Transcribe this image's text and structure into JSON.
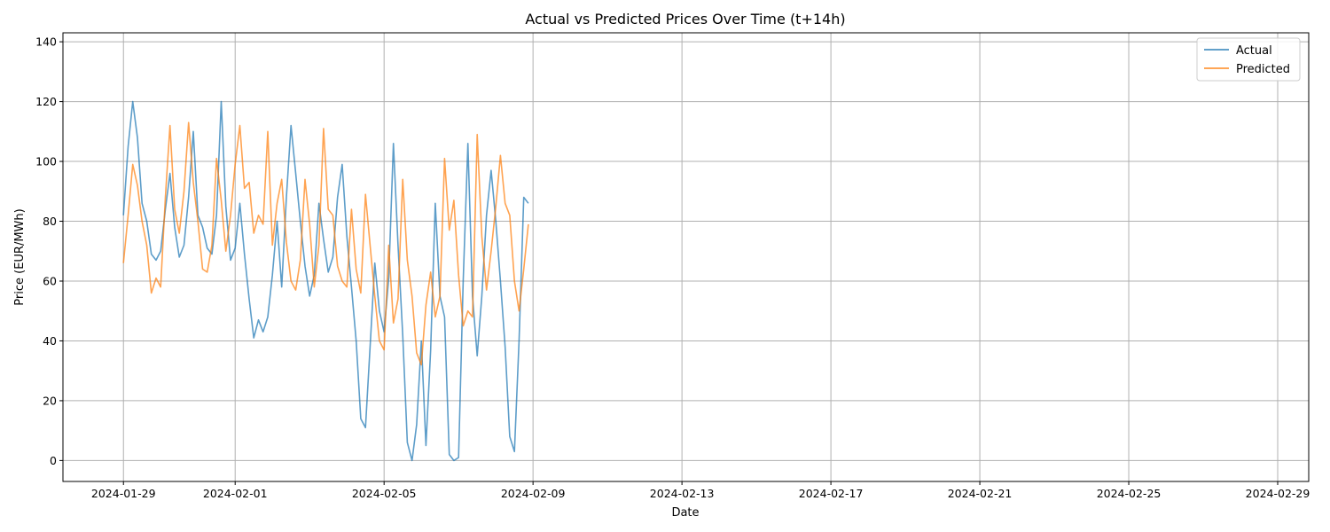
{
  "chart_data": {
    "type": "line",
    "title": "Actual vs Predicted Prices Over Time (t+14h)",
    "xlabel": "Date",
    "ylabel": "Price (EUR/MWh)",
    "xlim": [
      "2024-01-27T09:00",
      "2024-02-29T20:00"
    ],
    "ylim": [
      -7,
      143
    ],
    "grid": true,
    "legend_position": "top-right",
    "y_ticks": [
      0,
      20,
      40,
      60,
      80,
      100,
      120,
      140
    ],
    "x_ticks": [
      "2024-01-29",
      "2024-02-01",
      "2024-02-05",
      "2024-02-09",
      "2024-02-13",
      "2024-02-17",
      "2024-02-21",
      "2024-02-25",
      "2024-02-29"
    ],
    "series": [
      {
        "name": "Actual",
        "color": "#1f77b4",
        "points": [
          [
            "2024-01-29T00:00",
            82
          ],
          [
            "2024-01-29T03:00",
            105
          ],
          [
            "2024-01-29T06:00",
            120
          ],
          [
            "2024-01-29T09:00",
            108
          ],
          [
            "2024-01-29T12:00",
            86
          ],
          [
            "2024-01-29T15:00",
            80
          ],
          [
            "2024-01-29T18:00",
            69
          ],
          [
            "2024-01-29T21:00",
            67
          ],
          [
            "2024-01-30T00:00",
            70
          ],
          [
            "2024-01-30T03:00",
            84
          ],
          [
            "2024-01-30T06:00",
            96
          ],
          [
            "2024-01-30T09:00",
            78
          ],
          [
            "2024-01-30T12:00",
            68
          ],
          [
            "2024-01-30T15:00",
            72
          ],
          [
            "2024-01-30T18:00",
            88
          ],
          [
            "2024-01-30T21:00",
            110
          ],
          [
            "2024-01-31T00:00",
            82
          ],
          [
            "2024-01-31T03:00",
            78
          ],
          [
            "2024-01-31T06:00",
            71
          ],
          [
            "2024-01-31T09:00",
            69
          ],
          [
            "2024-01-31T12:00",
            82
          ],
          [
            "2024-01-31T15:00",
            120
          ],
          [
            "2024-01-31T18:00",
            85
          ],
          [
            "2024-01-31T21:00",
            67
          ],
          [
            "2024-02-01T00:00",
            71
          ],
          [
            "2024-02-01T03:00",
            86
          ],
          [
            "2024-02-01T06:00",
            69
          ],
          [
            "2024-02-01T09:00",
            54
          ],
          [
            "2024-02-01T12:00",
            41
          ],
          [
            "2024-02-01T15:00",
            47
          ],
          [
            "2024-02-01T18:00",
            43
          ],
          [
            "2024-02-01T21:00",
            48
          ],
          [
            "2024-02-02T00:00",
            62
          ],
          [
            "2024-02-02T03:00",
            80
          ],
          [
            "2024-02-02T06:00",
            58
          ],
          [
            "2024-02-02T09:00",
            88
          ],
          [
            "2024-02-02T12:00",
            112
          ],
          [
            "2024-02-02T15:00",
            96
          ],
          [
            "2024-02-02T18:00",
            80
          ],
          [
            "2024-02-02T21:00",
            65
          ],
          [
            "2024-02-03T00:00",
            55
          ],
          [
            "2024-02-03T03:00",
            62
          ],
          [
            "2024-02-03T06:00",
            86
          ],
          [
            "2024-02-03T09:00",
            74
          ],
          [
            "2024-02-03T12:00",
            63
          ],
          [
            "2024-02-03T15:00",
            68
          ],
          [
            "2024-02-03T18:00",
            88
          ],
          [
            "2024-02-03T21:00",
            99
          ],
          [
            "2024-02-04T00:00",
            75
          ],
          [
            "2024-02-04T03:00",
            58
          ],
          [
            "2024-02-04T06:00",
            40
          ],
          [
            "2024-02-04T09:00",
            14
          ],
          [
            "2024-02-04T12:00",
            11
          ],
          [
            "2024-02-04T15:00",
            38
          ],
          [
            "2024-02-04T18:00",
            66
          ],
          [
            "2024-02-04T21:00",
            50
          ],
          [
            "2024-02-05T00:00",
            43
          ],
          [
            "2024-02-05T03:00",
            61
          ],
          [
            "2024-02-05T06:00",
            106
          ],
          [
            "2024-02-05T09:00",
            72
          ],
          [
            "2024-02-05T12:00",
            42
          ],
          [
            "2024-02-05T15:00",
            6
          ],
          [
            "2024-02-05T18:00",
            0
          ],
          [
            "2024-02-05T21:00",
            12
          ],
          [
            "2024-02-06T00:00",
            40
          ],
          [
            "2024-02-06T03:00",
            5
          ],
          [
            "2024-02-06T06:00",
            37
          ],
          [
            "2024-02-06T09:00",
            86
          ],
          [
            "2024-02-06T12:00",
            55
          ],
          [
            "2024-02-06T15:00",
            48
          ],
          [
            "2024-02-06T18:00",
            2
          ],
          [
            "2024-02-06T21:00",
            0
          ],
          [
            "2024-02-07T00:00",
            1
          ],
          [
            "2024-02-07T03:00",
            60
          ],
          [
            "2024-02-07T06:00",
            106
          ],
          [
            "2024-02-07T09:00",
            55
          ],
          [
            "2024-02-07T12:00",
            35
          ],
          [
            "2024-02-07T15:00",
            55
          ],
          [
            "2024-02-07T18:00",
            82
          ],
          [
            "2024-02-07T21:00",
            97
          ],
          [
            "2024-02-08T00:00",
            80
          ],
          [
            "2024-02-08T03:00",
            60
          ],
          [
            "2024-02-08T06:00",
            38
          ],
          [
            "2024-02-08T09:00",
            8
          ],
          [
            "2024-02-08T12:00",
            3
          ],
          [
            "2024-02-08T15:00",
            40
          ],
          [
            "2024-02-08T18:00",
            88
          ],
          [
            "2024-02-08T21:00",
            86
          ]
        ]
      },
      {
        "name": "Predicted",
        "color": "#ff7f0e",
        "points": [
          [
            "2024-01-29T00:00",
            66
          ],
          [
            "2024-01-29T03:00",
            82
          ],
          [
            "2024-01-29T06:00",
            99
          ],
          [
            "2024-01-29T09:00",
            92
          ],
          [
            "2024-01-29T12:00",
            80
          ],
          [
            "2024-01-29T15:00",
            72
          ],
          [
            "2024-01-29T18:00",
            56
          ],
          [
            "2024-01-29T21:00",
            61
          ],
          [
            "2024-01-30T00:00",
            58
          ],
          [
            "2024-01-30T03:00",
            88
          ],
          [
            "2024-01-30T06:00",
            112
          ],
          [
            "2024-01-30T09:00",
            84
          ],
          [
            "2024-01-30T12:00",
            76
          ],
          [
            "2024-01-30T15:00",
            90
          ],
          [
            "2024-01-30T18:00",
            113
          ],
          [
            "2024-01-30T21:00",
            93
          ],
          [
            "2024-01-31T00:00",
            80
          ],
          [
            "2024-01-31T03:00",
            64
          ],
          [
            "2024-01-31T06:00",
            63
          ],
          [
            "2024-01-31T09:00",
            72
          ],
          [
            "2024-01-31T12:00",
            101
          ],
          [
            "2024-01-31T15:00",
            87
          ],
          [
            "2024-01-31T18:00",
            70
          ],
          [
            "2024-01-31T21:00",
            82
          ],
          [
            "2024-02-01T00:00",
            99
          ],
          [
            "2024-02-01T03:00",
            112
          ],
          [
            "2024-02-01T06:00",
            91
          ],
          [
            "2024-02-01T09:00",
            93
          ],
          [
            "2024-02-01T12:00",
            76
          ],
          [
            "2024-02-01T15:00",
            82
          ],
          [
            "2024-02-01T18:00",
            79
          ],
          [
            "2024-02-01T21:00",
            110
          ],
          [
            "2024-02-02T00:00",
            72
          ],
          [
            "2024-02-02T03:00",
            86
          ],
          [
            "2024-02-02T06:00",
            94
          ],
          [
            "2024-02-02T09:00",
            73
          ],
          [
            "2024-02-02T12:00",
            60
          ],
          [
            "2024-02-02T15:00",
            57
          ],
          [
            "2024-02-02T18:00",
            67
          ],
          [
            "2024-02-02T21:00",
            94
          ],
          [
            "2024-02-03T00:00",
            79
          ],
          [
            "2024-02-03T03:00",
            58
          ],
          [
            "2024-02-03T06:00",
            72
          ],
          [
            "2024-02-03T09:00",
            111
          ],
          [
            "2024-02-03T12:00",
            84
          ],
          [
            "2024-02-03T15:00",
            82
          ],
          [
            "2024-02-03T18:00",
            65
          ],
          [
            "2024-02-03T21:00",
            60
          ],
          [
            "2024-02-04T00:00",
            58
          ],
          [
            "2024-02-04T03:00",
            84
          ],
          [
            "2024-02-04T06:00",
            64
          ],
          [
            "2024-02-04T09:00",
            56
          ],
          [
            "2024-02-04T12:00",
            89
          ],
          [
            "2024-02-04T15:00",
            72
          ],
          [
            "2024-02-04T18:00",
            55
          ],
          [
            "2024-02-04T21:00",
            40
          ],
          [
            "2024-02-05T00:00",
            37
          ],
          [
            "2024-02-05T03:00",
            72
          ],
          [
            "2024-02-05T06:00",
            46
          ],
          [
            "2024-02-05T09:00",
            54
          ],
          [
            "2024-02-05T12:00",
            94
          ],
          [
            "2024-02-05T15:00",
            67
          ],
          [
            "2024-02-05T18:00",
            55
          ],
          [
            "2024-02-05T21:00",
            36
          ],
          [
            "2024-02-06T00:00",
            32
          ],
          [
            "2024-02-06T03:00",
            52
          ],
          [
            "2024-02-06T06:00",
            63
          ],
          [
            "2024-02-06T09:00",
            48
          ],
          [
            "2024-02-06T12:00",
            55
          ],
          [
            "2024-02-06T15:00",
            101
          ],
          [
            "2024-02-06T18:00",
            77
          ],
          [
            "2024-02-06T21:00",
            87
          ],
          [
            "2024-02-07T00:00",
            62
          ],
          [
            "2024-02-07T03:00",
            45
          ],
          [
            "2024-02-07T06:00",
            50
          ],
          [
            "2024-02-07T09:00",
            48
          ],
          [
            "2024-02-07T12:00",
            109
          ],
          [
            "2024-02-07T15:00",
            75
          ],
          [
            "2024-02-07T18:00",
            57
          ],
          [
            "2024-02-07T21:00",
            70
          ],
          [
            "2024-02-08T00:00",
            85
          ],
          [
            "2024-02-08T03:00",
            102
          ],
          [
            "2024-02-08T06:00",
            86
          ],
          [
            "2024-02-08T09:00",
            82
          ],
          [
            "2024-02-08T12:00",
            60
          ],
          [
            "2024-02-08T15:00",
            50
          ],
          [
            "2024-02-08T18:00",
            64
          ],
          [
            "2024-02-08T21:00",
            79
          ]
        ]
      }
    ]
  }
}
